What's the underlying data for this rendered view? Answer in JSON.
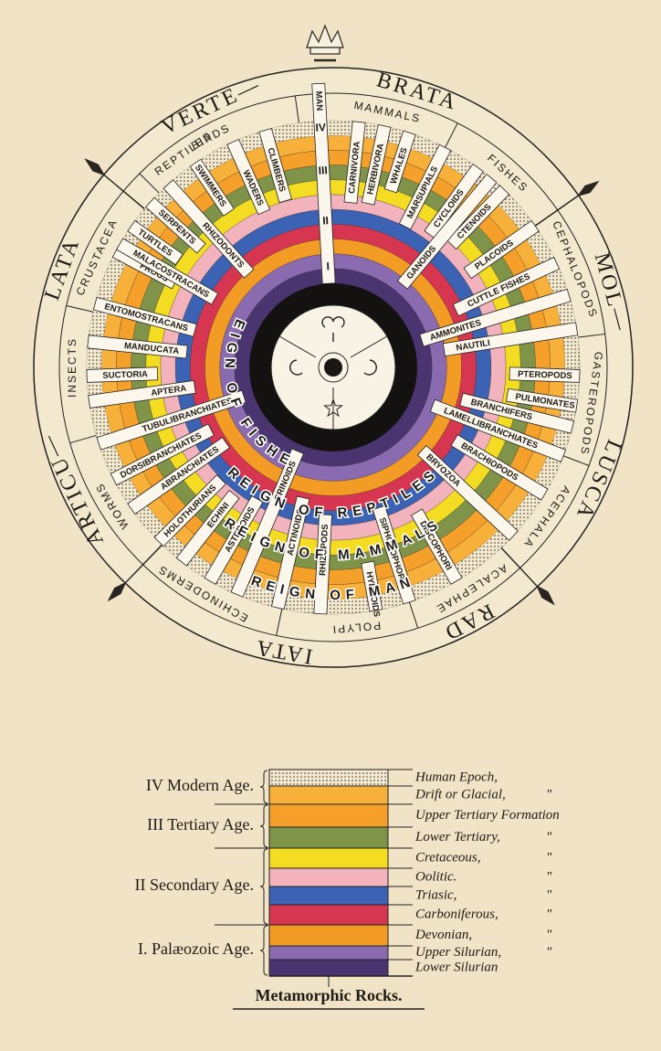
{
  "phyla": [
    "VERTE—",
    "BRATA",
    "MOL—",
    "LUSCA",
    "RAD",
    "IATA",
    "ARTICU—",
    "LATA"
  ],
  "classes": [
    "REPTILES",
    "BIRDS",
    "MAMMALS",
    "FISHES",
    "CEPHALOPODS",
    "GASTEROPODS",
    "ACEPHALA",
    "ACALEPHAE",
    "POLYPI",
    "ECHINODERMS",
    "WORMS",
    "INSECTS",
    "CRUSTACEA"
  ],
  "orders": [
    "MAN",
    "CLIMBERS",
    "WADERS",
    "SWIMMERS",
    "RHIZODONTS",
    "SERPENTS",
    "TURTLES",
    "FROGS",
    "CARNIVORA",
    "HERBIVORA",
    "WHALES",
    "MARSUPIALS",
    "CYCLOIDS",
    "CTENOIDS",
    "PLACOIDS",
    "GANOIDS",
    "CUTTLE FISHES",
    "AMMONITES",
    "NAUTILI",
    "PTEROPODS",
    "PULMONATES",
    "BRANCHIFERS",
    "LAMELLIBRANCHIATES",
    "BRACHIOPODS",
    "BRYOZOA",
    "DISCOPHORI",
    "SIPHONOPHORI",
    "HYDROIDS",
    "RHIZOPODS",
    "ACTINOIDS",
    "CRINOIDS",
    "ASTEROIDS",
    "ECHINI",
    "HOLOTHURIANS",
    "ABRANCHIATES",
    "DORSIBRANCHIATES",
    "TUBULIBRANCHIATES",
    "APTERA",
    "SUCTORIA",
    "MANDUCATA",
    "ENTOMOSTRACANS",
    "MALACOSTRACANS"
  ],
  "age_numerals": [
    "I",
    "II",
    "III",
    "IV"
  ],
  "reigns": [
    "REIGN OF FISHES",
    "REIGN OF REPTILES",
    "REIGN OF MAMMALS",
    "REIGN OF MAN"
  ],
  "legend": {
    "ages": [
      "IV Modern Age.",
      "III Tertiary Age.",
      "II Secondary Age.",
      "I. Palæozoic Age."
    ],
    "strata": [
      {
        "label": "Human Epoch,",
        "color": "#f3e9cf"
      },
      {
        "label": "Drift or Glacial,",
        "color": "#f7b03a",
        "mark": "\""
      },
      {
        "label": "Upper Tertiary Formation",
        "color": "#f5a02a"
      },
      {
        "label": "Lower Tertiary,",
        "color": "#7f9448",
        "mark": "\""
      },
      {
        "label": "Cretaceous,",
        "color": "#f3dc22",
        "mark": "\""
      },
      {
        "label": "Oolitic.",
        "color": "#f2b3bd",
        "mark": "\""
      },
      {
        "label": "Triasic,",
        "color": "#3b62b3",
        "mark": "\""
      },
      {
        "label": "Carboniferous,",
        "color": "#d6364f",
        "mark": "\""
      },
      {
        "label": "Devonian,",
        "color": "#f29c25",
        "mark": "\""
      },
      {
        "label": "Upper Silurian,",
        "color": "#8a6bb0",
        "mark": "\""
      },
      {
        "label": "Lower Silurian",
        "color": "#4b3570"
      }
    ],
    "base": "Metamorphic Rocks."
  }
}
